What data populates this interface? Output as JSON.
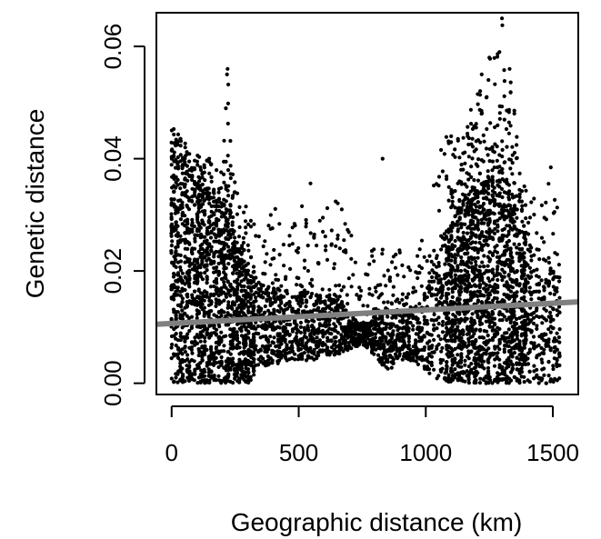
{
  "chart_data": {
    "type": "scatter",
    "title": "",
    "xlabel": "Geographic distance (km)",
    "ylabel": "Genetic distance",
    "xlim": [
      -60,
      1600
    ],
    "ylim": [
      -0.002,
      0.066
    ],
    "x_ticks": [
      0,
      500,
      1000,
      1500
    ],
    "x_tick_labels": [
      "0",
      "500",
      "1000",
      "1500"
    ],
    "y_ticks": [
      0.0,
      0.02,
      0.04,
      0.06
    ],
    "y_tick_labels": [
      "0.00",
      "0.02",
      "0.04",
      "0.06"
    ],
    "grid": false,
    "legend": "none",
    "point_color": "#000000",
    "regression_line": {
      "color": "#808080",
      "x": [
        -60,
        1600
      ],
      "y": [
        0.0105,
        0.0145
      ]
    },
    "density_profile": {
      "x": [
        0,
        50,
        100,
        150,
        200,
        220,
        250,
        300,
        350,
        400,
        450,
        500,
        550,
        600,
        650,
        700,
        750,
        800,
        850,
        900,
        950,
        1000,
        1050,
        1100,
        1150,
        1200,
        1250,
        1300,
        1350,
        1400,
        1450,
        1500,
        1530
      ],
      "y_max": [
        0.046,
        0.043,
        0.041,
        0.04,
        0.038,
        0.056,
        0.035,
        0.033,
        0.027,
        0.034,
        0.026,
        0.032,
        0.036,
        0.03,
        0.035,
        0.028,
        0.02,
        0.025,
        0.023,
        0.025,
        0.02,
        0.03,
        0.041,
        0.046,
        0.046,
        0.055,
        0.058,
        0.065,
        0.05,
        0.032,
        0.035,
        0.041,
        0.03
      ],
      "y_dense_max": [
        0.04,
        0.038,
        0.035,
        0.033,
        0.03,
        0.036,
        0.024,
        0.02,
        0.016,
        0.017,
        0.014,
        0.016,
        0.016,
        0.015,
        0.016,
        0.012,
        0.01,
        0.012,
        0.013,
        0.013,
        0.013,
        0.016,
        0.022,
        0.028,
        0.032,
        0.034,
        0.036,
        0.038,
        0.032,
        0.024,
        0.018,
        0.02,
        0.016
      ],
      "y_min": [
        0.0,
        0.0,
        0.0,
        0.0,
        0.0,
        0.0,
        0.0,
        0.0,
        0.002,
        0.003,
        0.004,
        0.004,
        0.004,
        0.005,
        0.005,
        0.006,
        0.007,
        0.005,
        0.002,
        0.004,
        0.004,
        0.002,
        0.0,
        0.0,
        0.0,
        0.0,
        0.0,
        0.0,
        0.0,
        0.0,
        0.0,
        0.0,
        0.0
      ]
    }
  }
}
